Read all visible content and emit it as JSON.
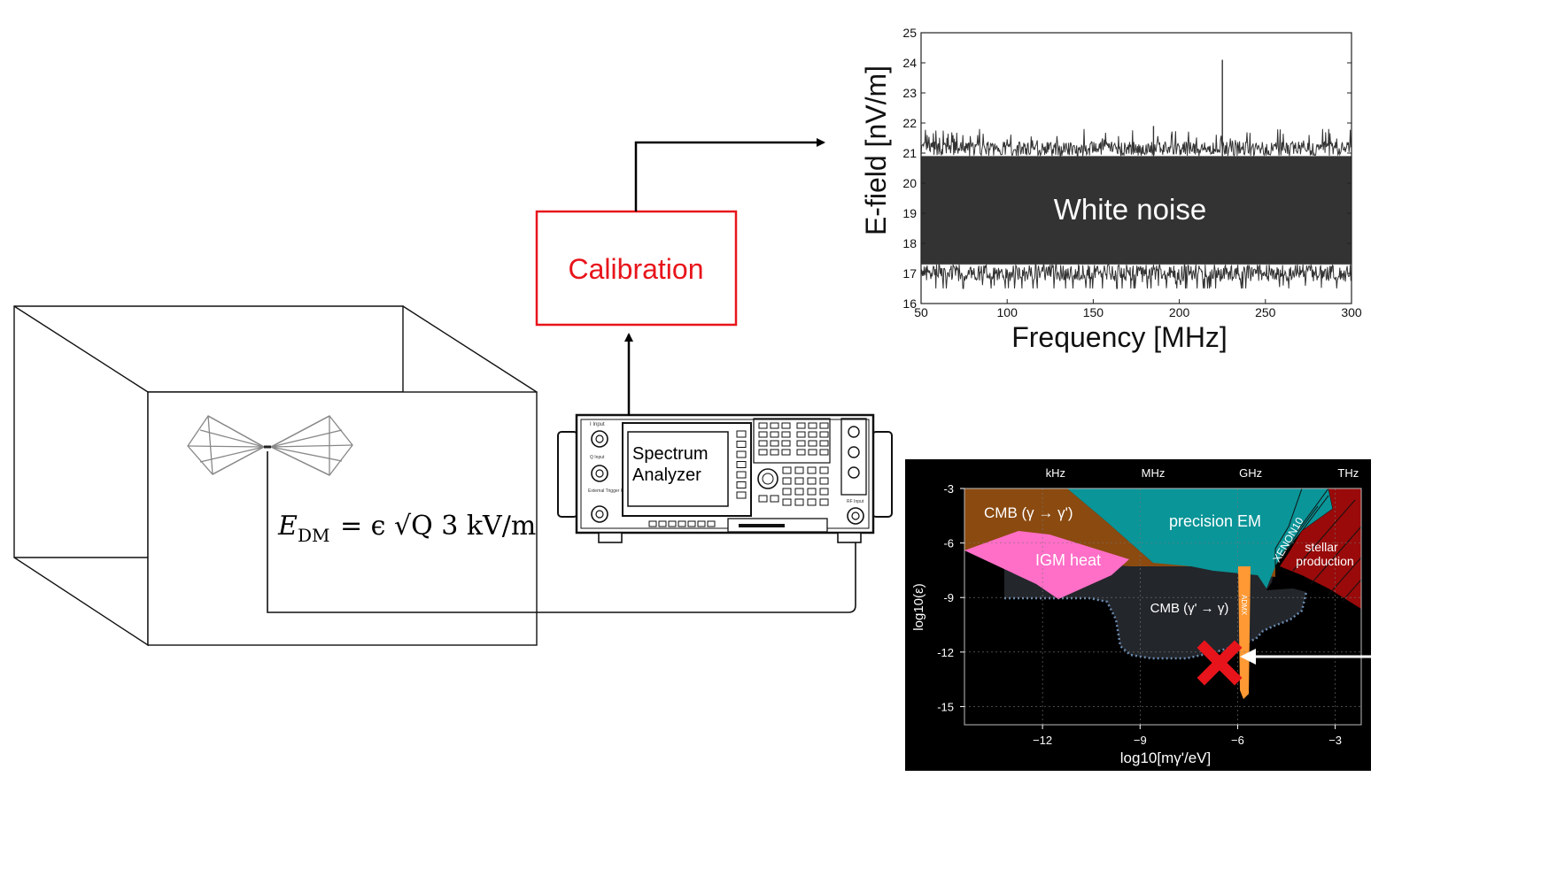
{
  "calibration": {
    "label": "Calibration",
    "color": "#e8141b"
  },
  "analyzer": {
    "label_line1": "Spectrum",
    "label_line2": "Analyzer",
    "tiny_labels": [
      "I Input",
      "Q Input",
      "External Trigger Input",
      "RF Input"
    ]
  },
  "box_formula": {
    "lhs_symbol": "E",
    "lhs_subscript": "DM",
    "rhs": "= ϵ √Q 3 kV/m"
  },
  "icons": {
    "antenna": "biconical-antenna-icon",
    "cross": "red-x-marker-icon",
    "arrow": "white-arrow-icon"
  },
  "noise_plot": {
    "title": "",
    "xlabel": "Frequency [MHz]",
    "ylabel": "E-field [nV/m]",
    "annotation": "White noise",
    "xticks": [
      "50",
      "100",
      "150",
      "200",
      "250",
      "300"
    ],
    "yticks": [
      "16",
      "17",
      "18",
      "19",
      "20",
      "21",
      "22",
      "23",
      "24",
      "25"
    ],
    "trace_color": "#333333"
  },
  "chart_data": [
    {
      "type": "line",
      "title": "",
      "xlabel": "Frequency [MHz]",
      "ylabel": "E-field [nV/m]",
      "xlim": [
        50,
        300
      ],
      "ylim": [
        16,
        25
      ],
      "grid": false,
      "annotation": "White noise",
      "noise_band": {
        "lower": 17.3,
        "upper": 20.9,
        "typical_min": 16.6,
        "typical_max": 21.5
      },
      "peaks": [
        {
          "x": 185,
          "y": 21.9
        },
        {
          "x": 225,
          "y": 24.1
        }
      ]
    },
    {
      "type": "area",
      "title": "",
      "xlabel": "log10[mγ'/eV]",
      "ylabel": "log10(ε)",
      "xlim": [
        -14.4,
        -2.2
      ],
      "ylim": [
        -16,
        -3
      ],
      "xticks": [
        "−12",
        "−9",
        "−6",
        "−3"
      ],
      "yticks": [
        "-3",
        "-6",
        "-9",
        "-12",
        "-15"
      ],
      "top_axis_labels": [
        "kHz",
        "MHz",
        "GHz",
        "THz"
      ],
      "grid": true,
      "background": "#000000",
      "regions": [
        {
          "name": "CMB (γ → γ')",
          "color": "#8b4a10"
        },
        {
          "name": "precision EM",
          "color": "#0a9598"
        },
        {
          "name": "XENON10",
          "color": "#0a9598"
        },
        {
          "name": "stellar production",
          "color": "#9a0a0a"
        },
        {
          "name": "IGM heat",
          "color": "#ff6ec7"
        },
        {
          "name": "CMB (γ' → γ)",
          "color": "#23262b"
        },
        {
          "name": "ADMX",
          "color": "#ff9933"
        }
      ],
      "marker": {
        "label": "",
        "x": -5.8,
        "y": -12.2,
        "color": "#e8141b"
      }
    }
  ]
}
